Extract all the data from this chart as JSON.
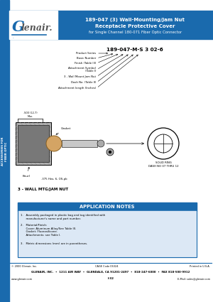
{
  "title_line1": "189-047 (3) Wall-Mounting/Jam Nut",
  "title_line2": "Receptacle Protective Cover",
  "title_line3": "for Single Channel 180-071 Fiber Optic Connector",
  "header_bg": "#1a6aad",
  "header_text_color": "#ffffff",
  "logo_bg": "#ffffff",
  "part_number": "189-047-M-S 3 02-6",
  "part_labels": [
    "Product Series",
    "Basic Number",
    "Finish (Table III)",
    "Attachment Symbol\n(Table I)",
    "3 - Wall Mount Jam Nut",
    "Dash No. (Table II)",
    "Attachment length (Inches)"
  ],
  "diagram_label": "3 - WALL MTG/JAM NUT",
  "solid_ring_label": "SOLID RING\nDASH NO 07 THRU 12",
  "gasket_label": "Gasket",
  "knurl_label": "Knurl",
  "bracket_label": ".375 Hex, 6, OS-pb",
  "dimension_label": ".500 (12.7)\nMax.",
  "app_notes_title": "APPLICATION NOTES",
  "app_notes_bg": "#1a6aad",
  "app_notes_text_bg": "#dce8f5",
  "app_note_1": "1.   Assembly packaged in plastic bag and tag identified with\n      manufacturer's name and part number.",
  "app_note_2": "2.   Material/Finish:\n      Cover: Aluminum Alloy/See Table III.\n      Gasket: Fluorosilicone.\n      Attachments: see Table I.",
  "app_note_3": "3.   Metric dimensions (mm) are in parentheses.",
  "footer_copy": "© 2000 Glenair, Inc.",
  "footer_cage": "CAGE Code 06324",
  "footer_printed": "Printed in U.S.A.",
  "footer_address": "GLENAIR, INC.  •  1211 AIR WAY  •  GLENDALE, CA 91201-2497  •  818-247-6000  •  FAX 818-500-9912",
  "footer_web": "www.glenair.com",
  "footer_page": "I-32",
  "footer_email": "E-Mail: sales@glenair.com",
  "sidebar_bg": "#1a6aad",
  "sidebar_text": "ACCESSORIES FOR\nFIBER OPTIC",
  "bg_color": "#ffffff"
}
